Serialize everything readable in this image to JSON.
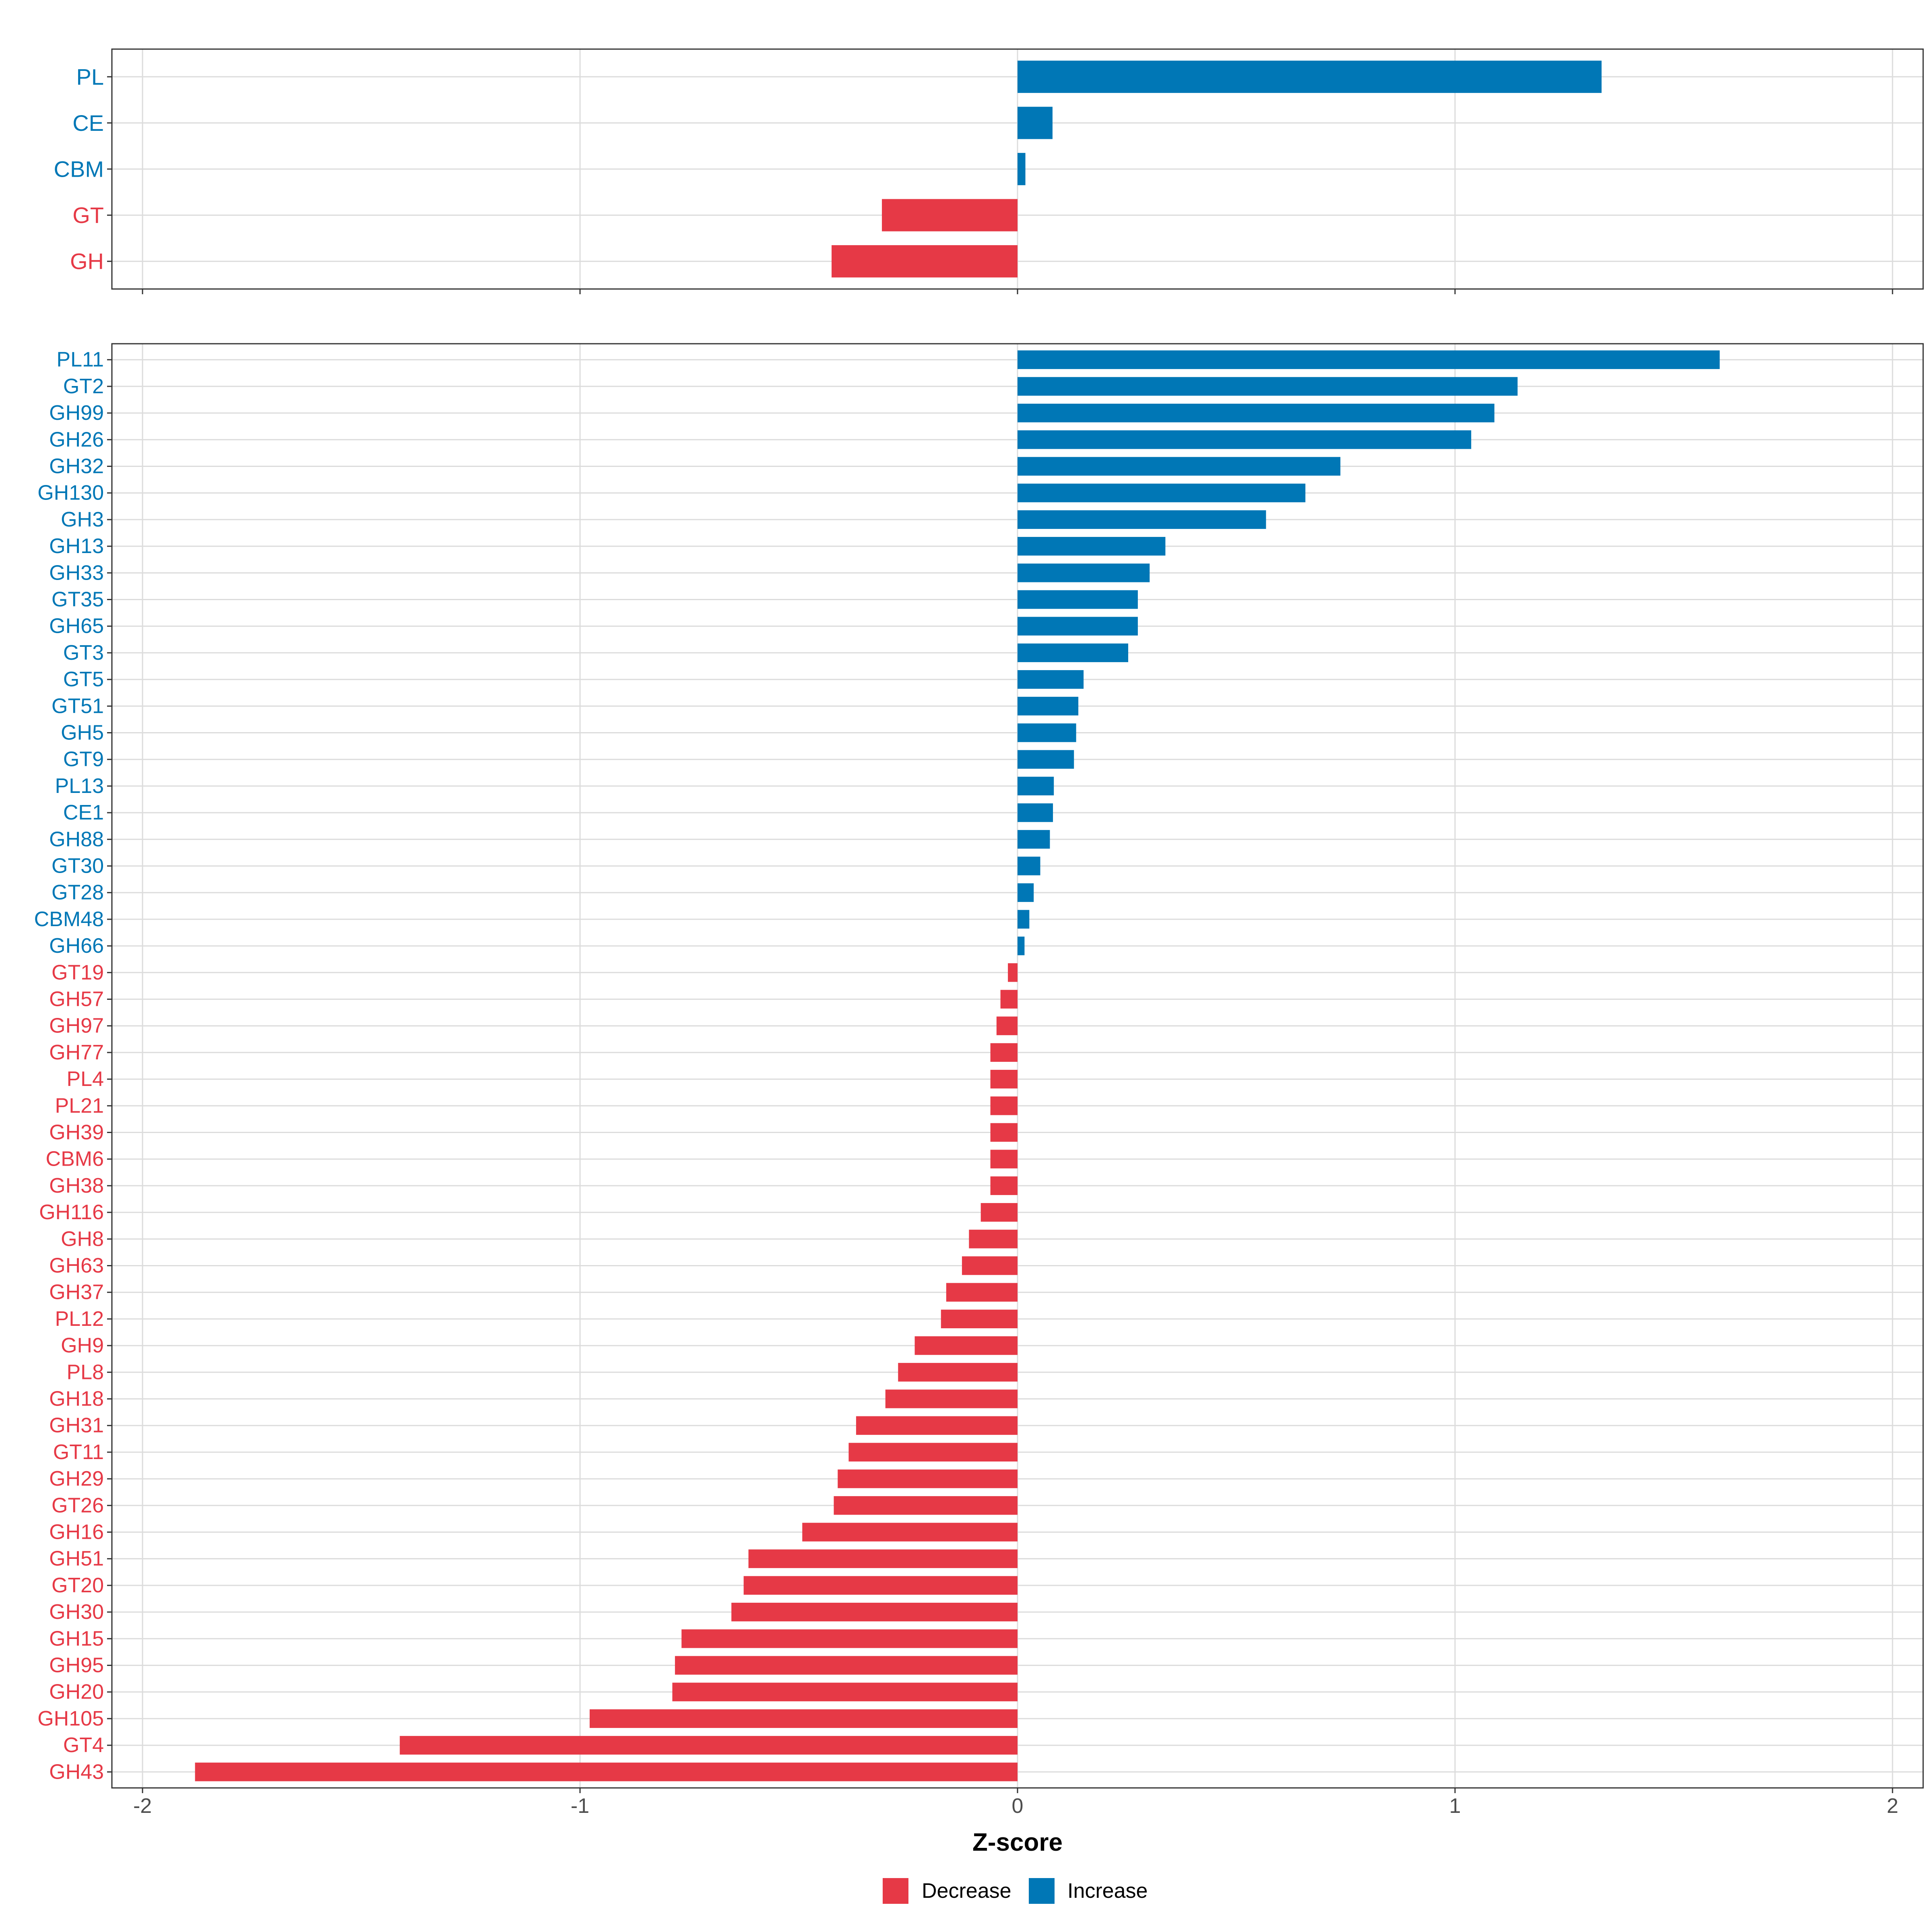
{
  "chart_data": [
    {
      "type": "bar",
      "orientation": "horizontal",
      "panel": "family",
      "categories": [
        "PL",
        "CE",
        "CBM",
        "GT",
        "GH"
      ],
      "values": [
        1.335,
        0.08,
        0.018,
        -0.31,
        -0.425
      ],
      "xlim": [
        -2.07,
        2.07
      ],
      "xticks": [
        -2,
        -1,
        0,
        1,
        2
      ],
      "grid": true
    },
    {
      "type": "bar",
      "orientation": "horizontal",
      "panel": "subfamily",
      "categories": [
        "PL11",
        "GT2",
        "GH99",
        "GH26",
        "GH32",
        "GH130",
        "GH3",
        "GH13",
        "GH33",
        "GT35",
        "GH65",
        "GT3",
        "GT5",
        "GT51",
        "GH5",
        "GT9",
        "PL13",
        "CE1",
        "GH88",
        "GT30",
        "GT28",
        "CBM48",
        "GH66",
        "GT19",
        "GH57",
        "GH97",
        "GH77",
        "PL4",
        "PL21",
        "GH39",
        "CBM6",
        "GH38",
        "GH116",
        "GH8",
        "GH63",
        "GH37",
        "PL12",
        "GH9",
        "PL8",
        "GH18",
        "GH31",
        "GT11",
        "GH29",
        "GT26",
        "GH16",
        "GH51",
        "GT20",
        "GH30",
        "GH15",
        "GH95",
        "GH20",
        "GH105",
        "GT4",
        "GH43"
      ],
      "values": [
        1.605,
        1.143,
        1.09,
        1.037,
        0.738,
        0.658,
        0.568,
        0.338,
        0.302,
        0.275,
        0.275,
        0.253,
        0.151,
        0.139,
        0.134,
        0.129,
        0.083,
        0.081,
        0.074,
        0.052,
        0.037,
        0.027,
        0.016,
        -0.022,
        -0.039,
        -0.048,
        -0.062,
        -0.062,
        -0.062,
        -0.062,
        -0.062,
        -0.062,
        -0.084,
        -0.111,
        -0.127,
        -0.163,
        -0.175,
        -0.235,
        -0.273,
        -0.302,
        -0.369,
        -0.386,
        -0.411,
        -0.42,
        -0.492,
        -0.615,
        -0.626,
        -0.654,
        -0.768,
        -0.783,
        -0.789,
        -0.978,
        -1.412,
        -1.88
      ],
      "xlim": [
        -2.07,
        2.07
      ],
      "xticks": [
        -2,
        -1,
        0,
        1,
        2
      ],
      "xlabel": "Z-score",
      "grid": true
    }
  ],
  "legend": {
    "placement": "bottom",
    "entries": [
      {
        "label": "Decrease",
        "color": "#E63946"
      },
      {
        "label": "Increase",
        "color": "#0077B6"
      }
    ]
  },
  "colors": {
    "increase": "#0077B6",
    "decrease": "#E63946",
    "grid": "#dcdcdc",
    "axis": "#333333",
    "tick_label": "#4d4d4d"
  }
}
